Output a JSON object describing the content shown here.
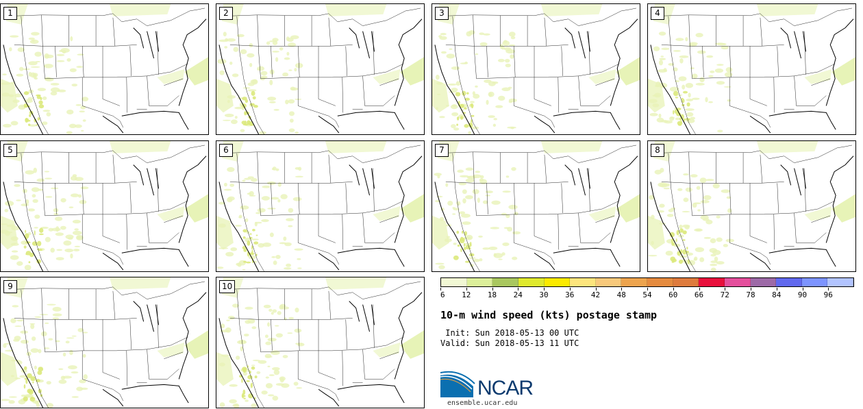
{
  "members": [
    {
      "label": "1"
    },
    {
      "label": "2"
    },
    {
      "label": "3"
    },
    {
      "label": "4"
    },
    {
      "label": "5"
    },
    {
      "label": "6"
    },
    {
      "label": "7"
    },
    {
      "label": "8"
    },
    {
      "label": "9"
    },
    {
      "label": "10"
    }
  ],
  "colorbar": {
    "colors": [
      "#f1f8d4",
      "#dcef9a",
      "#a9c75f",
      "#dfe92e",
      "#fbea00",
      "#fde57d",
      "#f8c97b",
      "#eda44e",
      "#e58b3f",
      "#de7b3d",
      "#e8103c",
      "#e44f9c",
      "#9d6aa7",
      "#6169ee",
      "#7d94ff",
      "#b2c4ff"
    ],
    "ticks": [
      "6",
      "12",
      "18",
      "24",
      "30",
      "36",
      "42",
      "48",
      "54",
      "60",
      "66",
      "72",
      "78",
      "84",
      "90",
      "96"
    ]
  },
  "title": "10-m wind speed (kts) postage stamp",
  "init": " Init: Sun 2018-05-13 00 UTC",
  "valid": "Valid: Sun 2018-05-13 11 UTC",
  "logo": {
    "text": "NCAR",
    "url": "ensemble.ucar.edu",
    "text_color": "#0b3a6e",
    "swoosh_color": "#0a6fb0"
  }
}
